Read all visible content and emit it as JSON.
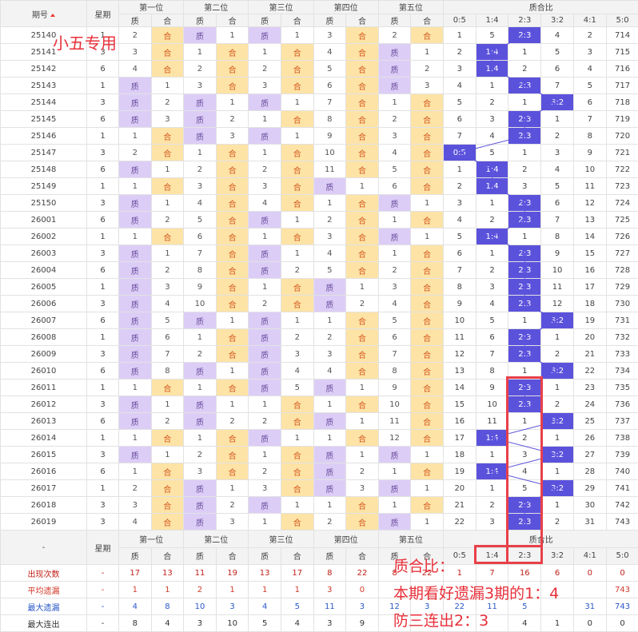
{
  "header": {
    "period": "期号",
    "weekday": "星期",
    "positions": [
      "第一位",
      "第二位",
      "第三位",
      "第四位",
      "第五位"
    ],
    "ratio_title": "质合比",
    "sub": [
      "质",
      "合"
    ],
    "ratios": [
      "0:5",
      "1:4",
      "2:3",
      "3:2",
      "4:1",
      "5:0"
    ]
  },
  "rows": [
    [
      "25140",
      1,
      2,
      "合",
      "质",
      1,
      "质",
      1,
      3,
      "合",
      2,
      "合",
      1,
      5,
      "2:3",
      4,
      2,
      714
    ],
    [
      "25141",
      3,
      3,
      "合",
      1,
      "合",
      1,
      "合",
      4,
      "合",
      "质",
      1,
      2,
      "1:4",
      1,
      5,
      3,
      715
    ],
    [
      "25142",
      6,
      4,
      "合",
      2,
      "合",
      2,
      "合",
      5,
      "合",
      "质",
      2,
      3,
      "1:4",
      2,
      6,
      4,
      716
    ],
    [
      "25143",
      1,
      "质",
      1,
      3,
      "合",
      3,
      "合",
      6,
      "合",
      "质",
      3,
      4,
      1,
      "2:3",
      7,
      5,
      717
    ],
    [
      "25144",
      3,
      "质",
      2,
      "质",
      1,
      "质",
      1,
      7,
      "合",
      1,
      "合",
      5,
      2,
      1,
      "3:2",
      6,
      718
    ],
    [
      "25145",
      6,
      "质",
      3,
      "质",
      2,
      1,
      "合",
      8,
      "合",
      2,
      "合",
      6,
      3,
      "2:3",
      1,
      7,
      719
    ],
    [
      "25146",
      1,
      1,
      "合",
      "质",
      3,
      "质",
      1,
      9,
      "合",
      3,
      "合",
      7,
      4,
      "2:3",
      2,
      8,
      720
    ],
    [
      "25147",
      3,
      2,
      "合",
      1,
      "合",
      1,
      "合",
      10,
      "合",
      4,
      "合",
      "0:5",
      5,
      1,
      3,
      9,
      721
    ],
    [
      "25148",
      6,
      "质",
      1,
      2,
      "合",
      2,
      "合",
      11,
      "合",
      5,
      "合",
      1,
      "1:4",
      2,
      4,
      10,
      722
    ],
    [
      "25149",
      1,
      1,
      "合",
      3,
      "合",
      3,
      "合",
      "质",
      1,
      6,
      "合",
      2,
      "1:4",
      3,
      5,
      11,
      723
    ],
    [
      "25150",
      3,
      "质",
      1,
      4,
      "合",
      4,
      "合",
      1,
      "合",
      "质",
      1,
      3,
      1,
      "2:3",
      6,
      12,
      724
    ],
    [
      "26001",
      6,
      "质",
      2,
      5,
      "合",
      "质",
      1,
      2,
      "合",
      1,
      "合",
      4,
      2,
      "2:3",
      7,
      13,
      725
    ],
    [
      "26002",
      1,
      1,
      "合",
      6,
      "合",
      1,
      "合",
      3,
      "合",
      "质",
      1,
      5,
      "1:4",
      1,
      8,
      14,
      726
    ],
    [
      "26003",
      3,
      "质",
      1,
      7,
      "合",
      "质",
      1,
      4,
      "合",
      1,
      "合",
      6,
      1,
      "2:3",
      9,
      15,
      727
    ],
    [
      "26004",
      6,
      "质",
      2,
      8,
      "合",
      "质",
      2,
      5,
      "合",
      2,
      "合",
      7,
      2,
      "2:3",
      10,
      16,
      728
    ],
    [
      "26005",
      1,
      "质",
      3,
      9,
      "合",
      1,
      "合",
      "质",
      1,
      3,
      "合",
      8,
      3,
      "2:3",
      11,
      17,
      729
    ],
    [
      "26006",
      3,
      "质",
      4,
      10,
      "合",
      2,
      "合",
      "质",
      2,
      4,
      "合",
      9,
      4,
      "2:3",
      12,
      18,
      730
    ],
    [
      "26007",
      6,
      "质",
      5,
      "质",
      1,
      "质",
      1,
      1,
      "合",
      5,
      "合",
      10,
      5,
      1,
      "3:2",
      19,
      731
    ],
    [
      "26008",
      1,
      "质",
      6,
      1,
      "合",
      "质",
      2,
      2,
      "合",
      6,
      "合",
      11,
      6,
      "2:3",
      1,
      20,
      732
    ],
    [
      "26009",
      3,
      "质",
      7,
      2,
      "合",
      "质",
      3,
      3,
      "合",
      7,
      "合",
      12,
      7,
      "2:3",
      2,
      21,
      733
    ],
    [
      "26010",
      6,
      "质",
      8,
      "质",
      1,
      "质",
      4,
      4,
      "合",
      8,
      "合",
      13,
      8,
      1,
      "3:2",
      22,
      734
    ],
    [
      "26011",
      1,
      1,
      "合",
      1,
      "合",
      "质",
      5,
      "质",
      1,
      9,
      "合",
      14,
      9,
      "2:3",
      1,
      23,
      735
    ],
    [
      "26012",
      3,
      "质",
      1,
      "质",
      1,
      1,
      "合",
      1,
      "合",
      10,
      "合",
      15,
      10,
      "2:3",
      2,
      24,
      736
    ],
    [
      "26013",
      6,
      "质",
      2,
      "质",
      2,
      2,
      "合",
      "质",
      1,
      11,
      "合",
      16,
      11,
      1,
      "3:2",
      25,
      737
    ],
    [
      "26014",
      1,
      1,
      "合",
      1,
      "合",
      "质",
      1,
      1,
      "合",
      12,
      "合",
      17,
      "1:4",
      2,
      1,
      26,
      738
    ],
    [
      "26015",
      3,
      "质",
      1,
      2,
      "合",
      1,
      "合",
      "质",
      1,
      "质",
      1,
      18,
      1,
      3,
      "3:2",
      27,
      739
    ],
    [
      "26016",
      6,
      1,
      "合",
      3,
      "合",
      2,
      "合",
      "质",
      2,
      1,
      "合",
      19,
      "1:4",
      4,
      1,
      28,
      740
    ],
    [
      "26017",
      1,
      2,
      "合",
      "质",
      1,
      3,
      "合",
      "质",
      3,
      "质",
      1,
      20,
      1,
      5,
      "3:2",
      29,
      741
    ],
    [
      "26018",
      3,
      3,
      "合",
      "质",
      2,
      "质",
      1,
      1,
      "合",
      1,
      "合",
      21,
      2,
      "2:3",
      1,
      30,
      742
    ],
    [
      "26019",
      3,
      4,
      "合",
      "质",
      3,
      1,
      "合",
      2,
      "合",
      "质",
      1,
      22,
      3,
      "2:3",
      2,
      31,
      743
    ]
  ],
  "footer_period": "-",
  "stats": [
    {
      "label": "出现次数",
      "values": [
        "-",
        17,
        13,
        11,
        19,
        13,
        17,
        8,
        22,
        8,
        22,
        1,
        7,
        16,
        6,
        0,
        0
      ]
    },
    {
      "label": "平均遗漏",
      "values": [
        "-",
        1,
        1,
        2,
        1,
        1,
        1,
        3,
        0,
        null,
        null,
        null,
        null,
        null,
        null,
        null,
        743
      ]
    },
    {
      "label": "最大遗漏",
      "values": [
        "-",
        4,
        8,
        10,
        3,
        4,
        5,
        11,
        3,
        12,
        3,
        22,
        11,
        5,
        null,
        31,
        743
      ]
    },
    {
      "label": "最大连出",
      "values": [
        "-",
        8,
        4,
        3,
        10,
        5,
        4,
        3,
        9,
        null,
        null,
        null,
        null,
        4,
        1,
        0,
        0
      ]
    }
  ],
  "annotations": {
    "tag": "小五专用",
    "note_title": "质合比：",
    "note_1": "本期看好遗漏3期的1：4",
    "note_2": "防三连出2：3"
  }
}
